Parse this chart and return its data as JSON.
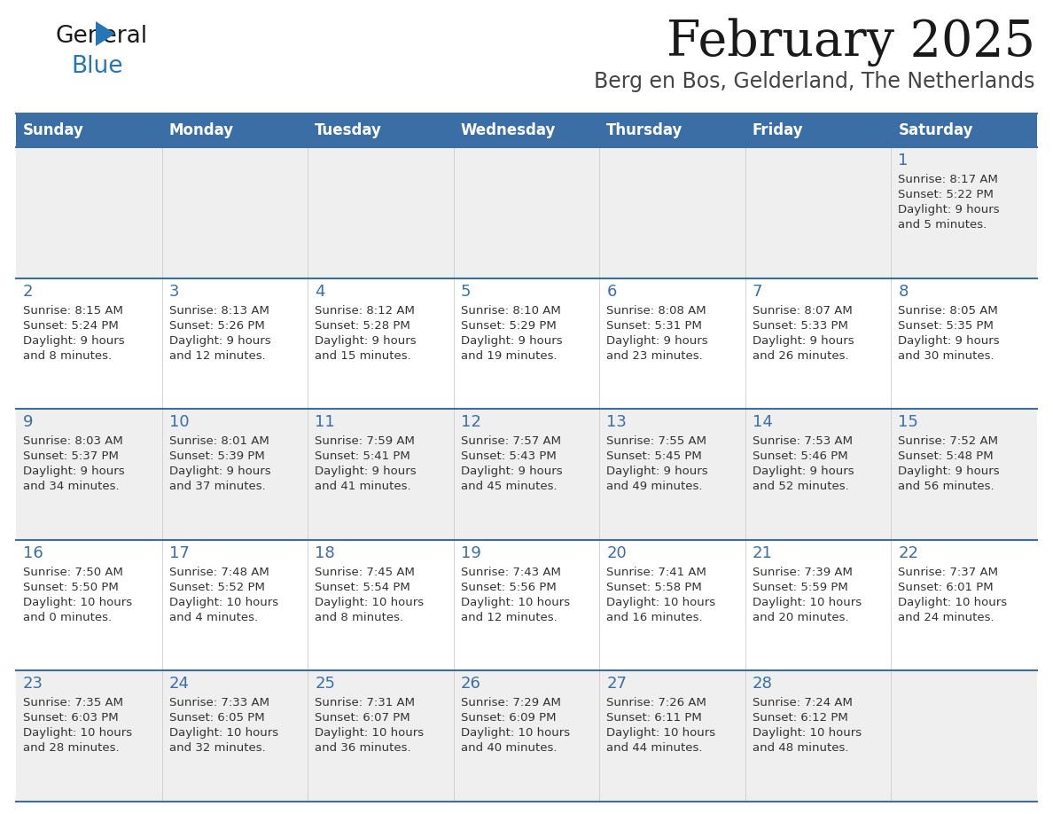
{
  "title": "February 2025",
  "subtitle": "Berg en Bos, Gelderland, The Netherlands",
  "days_of_week": [
    "Sunday",
    "Monday",
    "Tuesday",
    "Wednesday",
    "Thursday",
    "Friday",
    "Saturday"
  ],
  "header_bg": "#3A6EA5",
  "header_text": "#FFFFFF",
  "cell_bg_odd": "#EFEFEF",
  "cell_bg_even": "#FFFFFF",
  "border_color": "#3A6EA5",
  "day_number_color": "#3A6EA5",
  "text_color": "#333333",
  "title_color": "#1a1a1a",
  "subtitle_color": "#444444",
  "logo_general_color": "#1a1a1a",
  "logo_blue_color": "#2575B7",
  "weeks": [
    [
      {
        "day": null,
        "sunrise": null,
        "sunset": null,
        "daylight_line1": null,
        "daylight_line2": null
      },
      {
        "day": null,
        "sunrise": null,
        "sunset": null,
        "daylight_line1": null,
        "daylight_line2": null
      },
      {
        "day": null,
        "sunrise": null,
        "sunset": null,
        "daylight_line1": null,
        "daylight_line2": null
      },
      {
        "day": null,
        "sunrise": null,
        "sunset": null,
        "daylight_line1": null,
        "daylight_line2": null
      },
      {
        "day": null,
        "sunrise": null,
        "sunset": null,
        "daylight_line1": null,
        "daylight_line2": null
      },
      {
        "day": null,
        "sunrise": null,
        "sunset": null,
        "daylight_line1": null,
        "daylight_line2": null
      },
      {
        "day": 1,
        "sunrise": "Sunrise: 8:17 AM",
        "sunset": "Sunset: 5:22 PM",
        "daylight_line1": "Daylight: 9 hours",
        "daylight_line2": "and 5 minutes."
      }
    ],
    [
      {
        "day": 2,
        "sunrise": "Sunrise: 8:15 AM",
        "sunset": "Sunset: 5:24 PM",
        "daylight_line1": "Daylight: 9 hours",
        "daylight_line2": "and 8 minutes."
      },
      {
        "day": 3,
        "sunrise": "Sunrise: 8:13 AM",
        "sunset": "Sunset: 5:26 PM",
        "daylight_line1": "Daylight: 9 hours",
        "daylight_line2": "and 12 minutes."
      },
      {
        "day": 4,
        "sunrise": "Sunrise: 8:12 AM",
        "sunset": "Sunset: 5:28 PM",
        "daylight_line1": "Daylight: 9 hours",
        "daylight_line2": "and 15 minutes."
      },
      {
        "day": 5,
        "sunrise": "Sunrise: 8:10 AM",
        "sunset": "Sunset: 5:29 PM",
        "daylight_line1": "Daylight: 9 hours",
        "daylight_line2": "and 19 minutes."
      },
      {
        "day": 6,
        "sunrise": "Sunrise: 8:08 AM",
        "sunset": "Sunset: 5:31 PM",
        "daylight_line1": "Daylight: 9 hours",
        "daylight_line2": "and 23 minutes."
      },
      {
        "day": 7,
        "sunrise": "Sunrise: 8:07 AM",
        "sunset": "Sunset: 5:33 PM",
        "daylight_line1": "Daylight: 9 hours",
        "daylight_line2": "and 26 minutes."
      },
      {
        "day": 8,
        "sunrise": "Sunrise: 8:05 AM",
        "sunset": "Sunset: 5:35 PM",
        "daylight_line1": "Daylight: 9 hours",
        "daylight_line2": "and 30 minutes."
      }
    ],
    [
      {
        "day": 9,
        "sunrise": "Sunrise: 8:03 AM",
        "sunset": "Sunset: 5:37 PM",
        "daylight_line1": "Daylight: 9 hours",
        "daylight_line2": "and 34 minutes."
      },
      {
        "day": 10,
        "sunrise": "Sunrise: 8:01 AM",
        "sunset": "Sunset: 5:39 PM",
        "daylight_line1": "Daylight: 9 hours",
        "daylight_line2": "and 37 minutes."
      },
      {
        "day": 11,
        "sunrise": "Sunrise: 7:59 AM",
        "sunset": "Sunset: 5:41 PM",
        "daylight_line1": "Daylight: 9 hours",
        "daylight_line2": "and 41 minutes."
      },
      {
        "day": 12,
        "sunrise": "Sunrise: 7:57 AM",
        "sunset": "Sunset: 5:43 PM",
        "daylight_line1": "Daylight: 9 hours",
        "daylight_line2": "and 45 minutes."
      },
      {
        "day": 13,
        "sunrise": "Sunrise: 7:55 AM",
        "sunset": "Sunset: 5:45 PM",
        "daylight_line1": "Daylight: 9 hours",
        "daylight_line2": "and 49 minutes."
      },
      {
        "day": 14,
        "sunrise": "Sunrise: 7:53 AM",
        "sunset": "Sunset: 5:46 PM",
        "daylight_line1": "Daylight: 9 hours",
        "daylight_line2": "and 52 minutes."
      },
      {
        "day": 15,
        "sunrise": "Sunrise: 7:52 AM",
        "sunset": "Sunset: 5:48 PM",
        "daylight_line1": "Daylight: 9 hours",
        "daylight_line2": "and 56 minutes."
      }
    ],
    [
      {
        "day": 16,
        "sunrise": "Sunrise: 7:50 AM",
        "sunset": "Sunset: 5:50 PM",
        "daylight_line1": "Daylight: 10 hours",
        "daylight_line2": "and 0 minutes."
      },
      {
        "day": 17,
        "sunrise": "Sunrise: 7:48 AM",
        "sunset": "Sunset: 5:52 PM",
        "daylight_line1": "Daylight: 10 hours",
        "daylight_line2": "and 4 minutes."
      },
      {
        "day": 18,
        "sunrise": "Sunrise: 7:45 AM",
        "sunset": "Sunset: 5:54 PM",
        "daylight_line1": "Daylight: 10 hours",
        "daylight_line2": "and 8 minutes."
      },
      {
        "day": 19,
        "sunrise": "Sunrise: 7:43 AM",
        "sunset": "Sunset: 5:56 PM",
        "daylight_line1": "Daylight: 10 hours",
        "daylight_line2": "and 12 minutes."
      },
      {
        "day": 20,
        "sunrise": "Sunrise: 7:41 AM",
        "sunset": "Sunset: 5:58 PM",
        "daylight_line1": "Daylight: 10 hours",
        "daylight_line2": "and 16 minutes."
      },
      {
        "day": 21,
        "sunrise": "Sunrise: 7:39 AM",
        "sunset": "Sunset: 5:59 PM",
        "daylight_line1": "Daylight: 10 hours",
        "daylight_line2": "and 20 minutes."
      },
      {
        "day": 22,
        "sunrise": "Sunrise: 7:37 AM",
        "sunset": "Sunset: 6:01 PM",
        "daylight_line1": "Daylight: 10 hours",
        "daylight_line2": "and 24 minutes."
      }
    ],
    [
      {
        "day": 23,
        "sunrise": "Sunrise: 7:35 AM",
        "sunset": "Sunset: 6:03 PM",
        "daylight_line1": "Daylight: 10 hours",
        "daylight_line2": "and 28 minutes."
      },
      {
        "day": 24,
        "sunrise": "Sunrise: 7:33 AM",
        "sunset": "Sunset: 6:05 PM",
        "daylight_line1": "Daylight: 10 hours",
        "daylight_line2": "and 32 minutes."
      },
      {
        "day": 25,
        "sunrise": "Sunrise: 7:31 AM",
        "sunset": "Sunset: 6:07 PM",
        "daylight_line1": "Daylight: 10 hours",
        "daylight_line2": "and 36 minutes."
      },
      {
        "day": 26,
        "sunrise": "Sunrise: 7:29 AM",
        "sunset": "Sunset: 6:09 PM",
        "daylight_line1": "Daylight: 10 hours",
        "daylight_line2": "and 40 minutes."
      },
      {
        "day": 27,
        "sunrise": "Sunrise: 7:26 AM",
        "sunset": "Sunset: 6:11 PM",
        "daylight_line1": "Daylight: 10 hours",
        "daylight_line2": "and 44 minutes."
      },
      {
        "day": 28,
        "sunrise": "Sunrise: 7:24 AM",
        "sunset": "Sunset: 6:12 PM",
        "daylight_line1": "Daylight: 10 hours",
        "daylight_line2": "and 48 minutes."
      },
      {
        "day": null,
        "sunrise": null,
        "sunset": null,
        "daylight_line1": null,
        "daylight_line2": null
      }
    ]
  ],
  "figsize": [
    11.88,
    9.18
  ],
  "dpi": 100
}
